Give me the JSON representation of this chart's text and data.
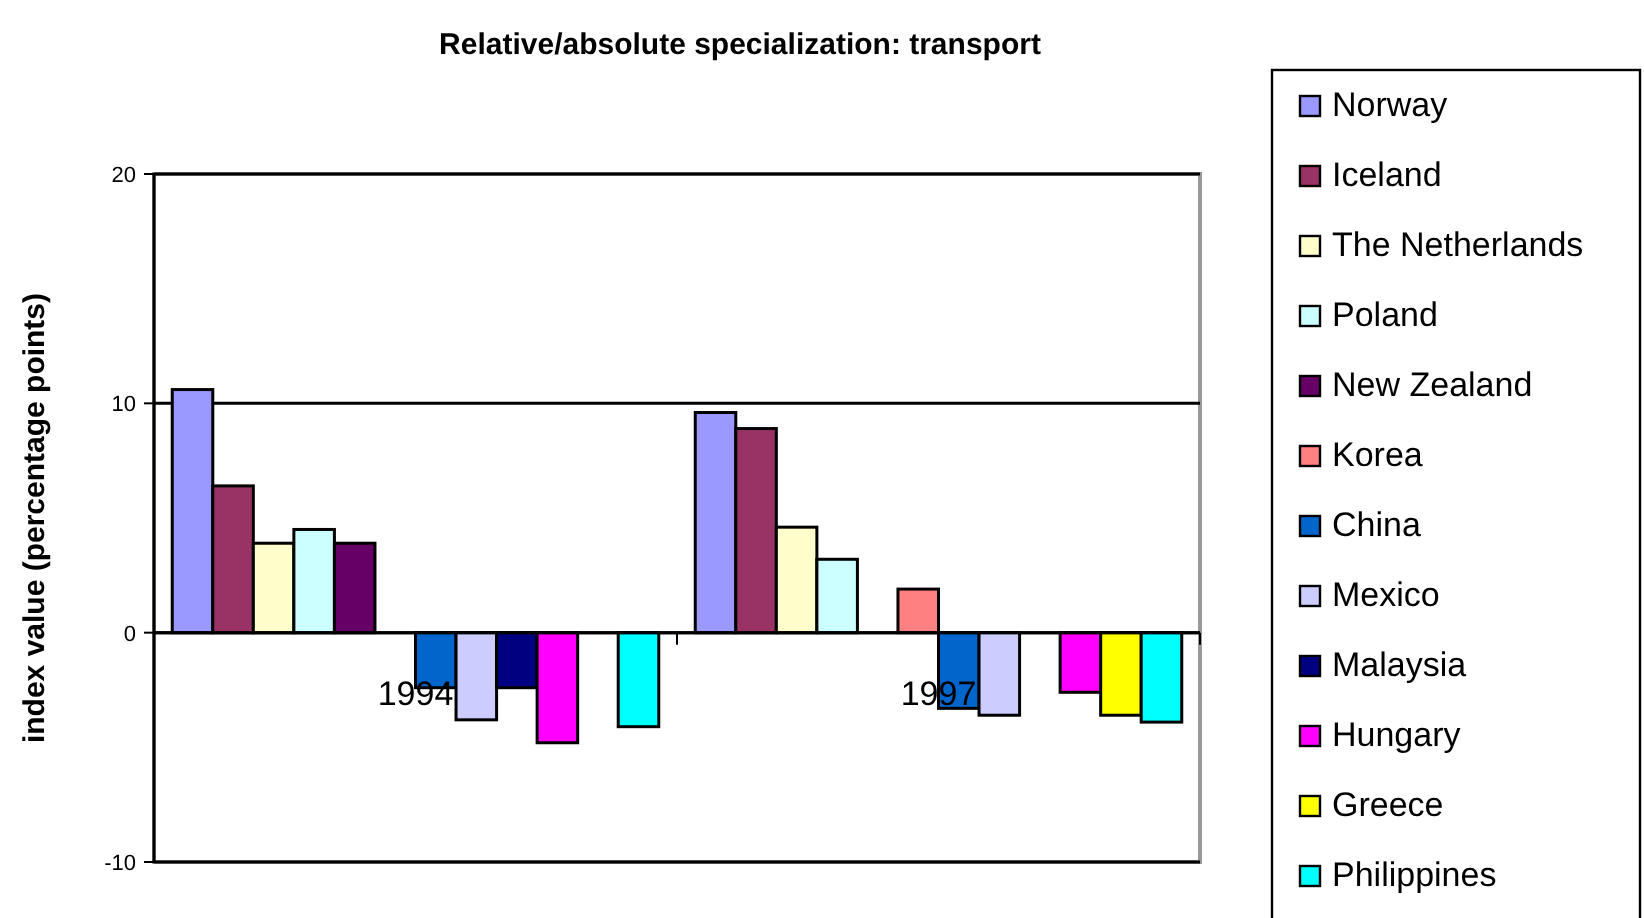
{
  "chart_data": {
    "type": "bar",
    "title": "Relative/absolute specialization: transport",
    "ylabel": "index value (percentage points)",
    "categories": [
      "1994",
      "1997"
    ],
    "series": [
      {
        "name": "Norway",
        "color": "#9999ff",
        "values": [
          10.6,
          9.6
        ]
      },
      {
        "name": "Iceland",
        "color": "#993366",
        "values": [
          6.4,
          8.9
        ]
      },
      {
        "name": "The Netherlands",
        "color": "#ffffcc",
        "values": [
          3.9,
          4.6
        ]
      },
      {
        "name": "Poland",
        "color": "#ccffff",
        "values": [
          4.5,
          3.2
        ]
      },
      {
        "name": "New Zealand",
        "color": "#660066",
        "values": [
          3.9,
          null
        ]
      },
      {
        "name": "Korea",
        "color": "#ff8080",
        "values": [
          null,
          1.9
        ]
      },
      {
        "name": "China",
        "color": "#0066cc",
        "values": [
          -2.4,
          -3.3
        ]
      },
      {
        "name": "Mexico",
        "color": "#ccccff",
        "values": [
          -3.8,
          -3.6
        ]
      },
      {
        "name": "Malaysia",
        "color": "#000080",
        "values": [
          -2.4,
          null
        ]
      },
      {
        "name": "Hungary",
        "color": "#ff00ff",
        "values": [
          -4.8,
          -2.6
        ]
      },
      {
        "name": "Greece",
        "color": "#ffff00",
        "values": [
          null,
          -3.6
        ]
      },
      {
        "name": "Philippines",
        "color": "#00ffff",
        "values": [
          -4.1,
          -3.9
        ]
      }
    ],
    "ylim": [
      -10,
      20
    ],
    "yticks": [
      -10,
      0,
      10,
      20
    ],
    "grid": "y",
    "legend": "right"
  }
}
